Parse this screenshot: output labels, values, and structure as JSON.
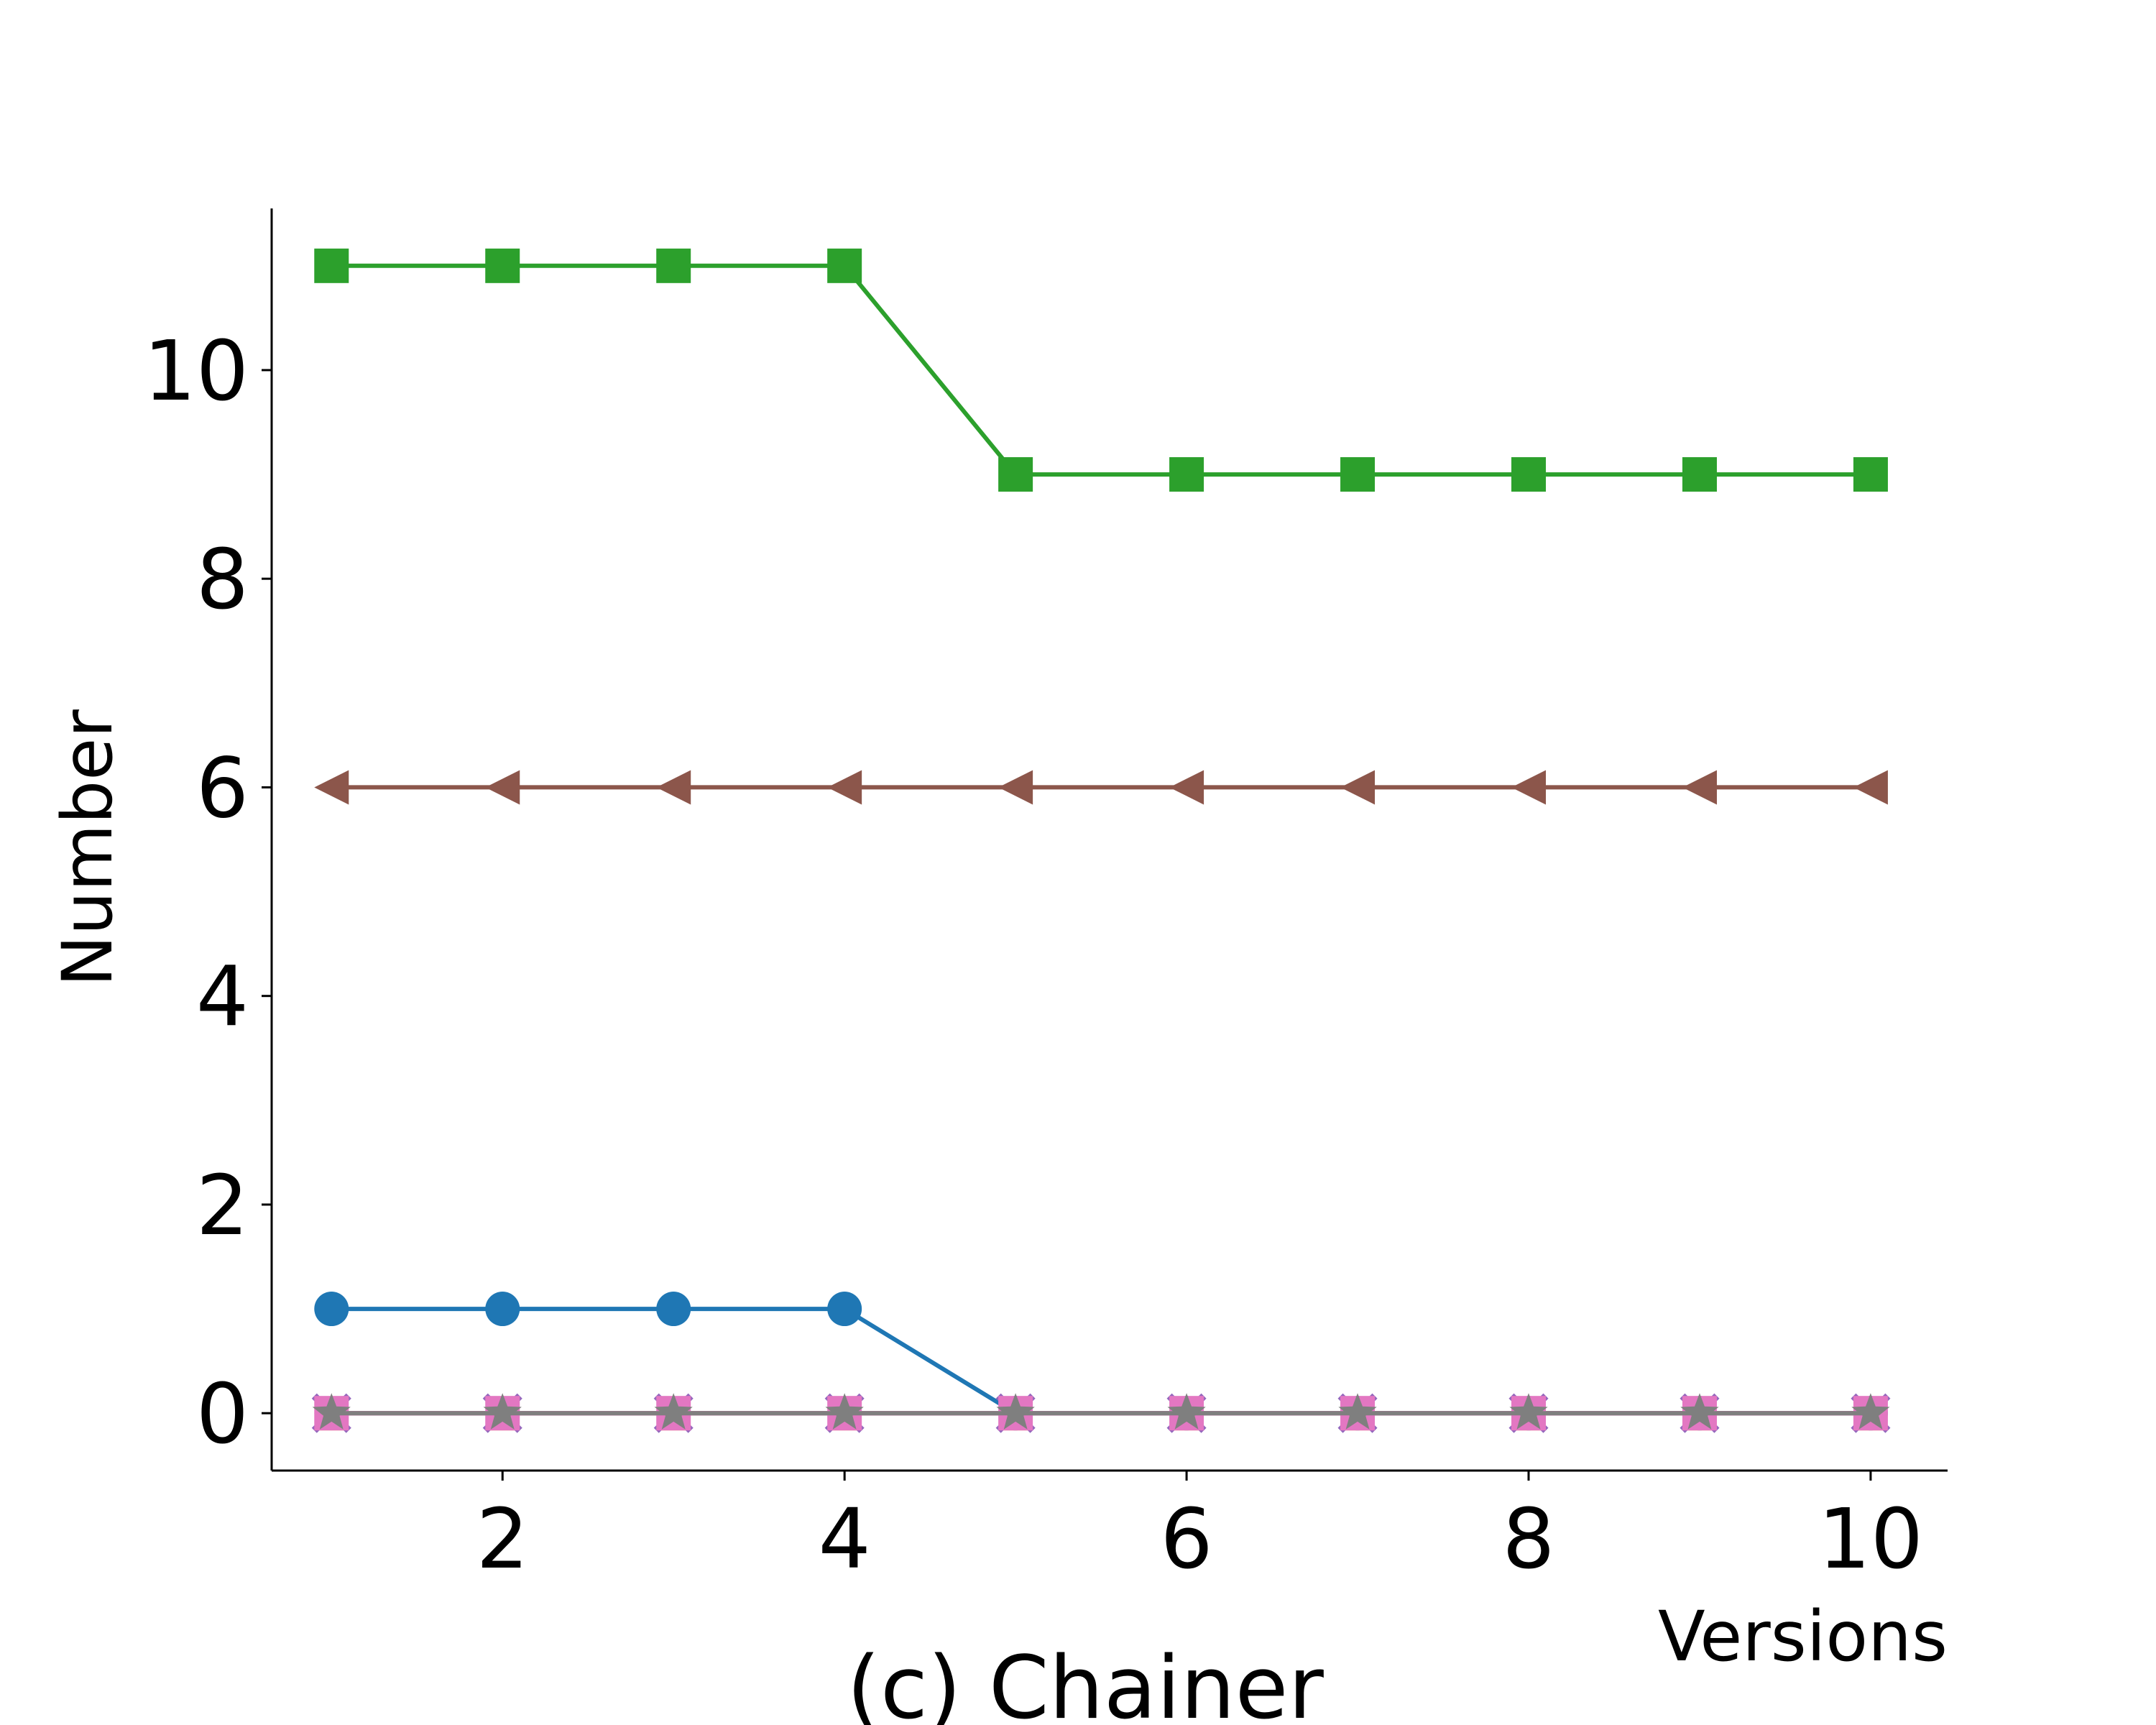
{
  "chart_data": {
    "type": "line",
    "title": "",
    "caption": "(c) Chainer",
    "xlabel": "Versions",
    "ylabel": "Number",
    "xlim": [
      0.65,
      10.45
    ],
    "ylim": [
      -0.55,
      11.55
    ],
    "xticks": [
      2,
      4,
      6,
      8,
      10
    ],
    "yticks": [
      0,
      2,
      4,
      6,
      8,
      10
    ],
    "grid": false,
    "x": [
      1,
      2,
      3,
      4,
      5,
      6,
      7,
      8,
      9,
      10
    ],
    "series": [
      {
        "color": "#2ca02c",
        "marker": "square",
        "values": [
          11,
          11,
          11,
          11,
          9,
          9,
          9,
          9,
          9,
          9
        ]
      },
      {
        "color": "#8c564b",
        "marker": "triangle-left",
        "values": [
          6,
          6,
          6,
          6,
          6,
          6,
          6,
          6,
          6,
          6
        ]
      },
      {
        "color": "#1f77b4",
        "marker": "circle",
        "values": [
          1,
          1,
          1,
          1,
          0,
          0,
          0,
          0,
          0,
          0
        ]
      },
      {
        "color": "#ff7f0e",
        "marker": "triangle-up",
        "values": [
          0,
          0,
          0,
          0,
          0,
          0,
          0,
          0,
          0,
          0
        ]
      },
      {
        "color": "#d62728",
        "marker": "diamond",
        "values": [
          0,
          0,
          0,
          0,
          0,
          0,
          0,
          0,
          0,
          0
        ]
      },
      {
        "color": "#9467bd",
        "marker": "x",
        "values": [
          0,
          0,
          0,
          0,
          0,
          0,
          0,
          0,
          0,
          0
        ]
      },
      {
        "color": "#e377c2",
        "marker": "square",
        "values": [
          0,
          0,
          0,
          0,
          0,
          0,
          0,
          0,
          0,
          0
        ]
      },
      {
        "color": "#7f7f7f",
        "marker": "star",
        "values": [
          0,
          0,
          0,
          0,
          0,
          0,
          0,
          0,
          0,
          0
        ]
      }
    ]
  }
}
